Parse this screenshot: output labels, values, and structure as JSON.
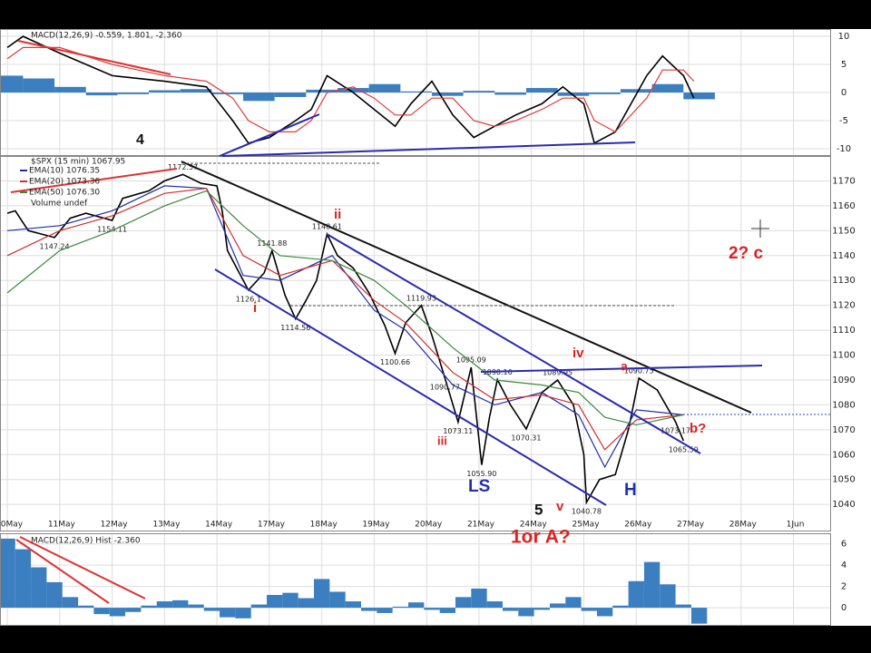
{
  "chart_data": [
    {
      "type": "line",
      "title": "$SPX (15 min) 1067.95",
      "volume_label": "Volume undef",
      "xlim": [
        -0.14,
        15.7
      ],
      "xticks": [
        {
          "value": 0,
          "label": "10May"
        },
        {
          "value": 1,
          "label": "11May"
        },
        {
          "value": 2,
          "label": "12May"
        },
        {
          "value": 3,
          "label": "13May"
        },
        {
          "value": 4,
          "label": "14May"
        },
        {
          "value": 5,
          "label": "17May"
        },
        {
          "value": 6,
          "label": "18May"
        },
        {
          "value": 7,
          "label": "19May"
        },
        {
          "value": 8,
          "label": "20May"
        },
        {
          "value": 9,
          "label": "21May"
        },
        {
          "value": 10,
          "label": "24May"
        },
        {
          "value": 11,
          "label": "25May"
        },
        {
          "value": 12,
          "label": "26May"
        },
        {
          "value": 13,
          "label": "27May"
        },
        {
          "value": 14,
          "label": "28May"
        },
        {
          "value": 15,
          "label": "1Jun"
        }
      ],
      "ylim": [
        1029.5,
        1180
      ],
      "yticks": [
        1040,
        1050,
        1060,
        1070,
        1080,
        1090,
        1100,
        1110,
        1120,
        1130,
        1140,
        1150,
        1160,
        1170
      ],
      "grid": true,
      "series": [
        {
          "name": "$SPX (15 min) 1067.95",
          "color": "#000000",
          "legend": false,
          "x": [
            0,
            0.15,
            0.4,
            0.9,
            1.2,
            1.5,
            2.0,
            2.2,
            2.7,
            3.0,
            3.35,
            3.7,
            4.0,
            4.1,
            4.2,
            4.4,
            4.6,
            4.9,
            5.05,
            5.3,
            5.5,
            5.7,
            5.9,
            6.1,
            6.3,
            6.6,
            6.9,
            7.2,
            7.4,
            7.6,
            7.9,
            8.1,
            8.35,
            8.6,
            8.85,
            9.05,
            9.2,
            9.35,
            9.6,
            9.9,
            10.2,
            10.5,
            10.8,
            11.0,
            11.05,
            11.3,
            11.6,
            11.85,
            12.05,
            12.4,
            12.75,
            12.9
          ],
          "values": [
            1157,
            1158,
            1150,
            1147.24,
            1155,
            1157,
            1154.11,
            1163,
            1166,
            1170,
            1172.57,
            1169,
            1168,
            1158,
            1142,
            1134,
            1126.1,
            1133,
            1141.88,
            1124,
            1114.56,
            1122,
            1130,
            1148.61,
            1140,
            1135,
            1125,
            1112,
            1100.66,
            1113,
            1119.93,
            1108,
            1090.77,
            1073.11,
            1095.09,
            1055.9,
            1075,
            1090.16,
            1080,
            1070.31,
            1085,
            1089.95,
            1080,
            1060,
            1040.78,
            1050,
            1052,
            1070,
            1090.75,
            1086,
            1073.17,
            1065.59
          ],
          "value_labels": [
            null,
            null,
            null,
            "1147.24",
            null,
            null,
            "1154.11",
            null,
            null,
            null,
            "1172.57",
            null,
            null,
            null,
            null,
            null,
            "1126.1",
            null,
            "1141.88",
            null,
            "1114.56",
            null,
            null,
            "1148.61",
            null,
            null,
            null,
            null,
            "1100.66",
            null,
            "1119.93",
            null,
            "1090.77",
            "1073.11",
            "1095.09",
            "1055.90",
            null,
            "1090.16",
            null,
            "1070.31",
            null,
            "1089.95",
            null,
            null,
            "1040.78",
            null,
            null,
            null,
            "1090.75",
            null,
            "1073.17",
            "1065.59"
          ]
        },
        {
          "name": "EMA(10) 1076.35",
          "color": "#1f2fa8",
          "x": [
            0,
            1,
            2,
            3,
            3.8,
            4.5,
            5.2,
            6.2,
            7.0,
            7.6,
            8.5,
            9.3,
            10.2,
            10.9,
            11.4,
            12.0,
            12.9
          ],
          "values": [
            1150,
            1152,
            1158,
            1168,
            1167,
            1132,
            1130,
            1140,
            1118,
            1110,
            1088,
            1080,
            1085,
            1076,
            1055,
            1078,
            1076
          ]
        },
        {
          "name": "EMA(20) 1073.36",
          "color": "#d03030",
          "x": [
            0,
            1,
            2,
            3,
            3.8,
            4.5,
            5.2,
            6.2,
            7.0,
            7.6,
            8.5,
            9.3,
            10.2,
            10.9,
            11.4,
            12.0,
            12.9
          ],
          "values": [
            1140,
            1150,
            1156,
            1165,
            1167,
            1140,
            1132,
            1138,
            1122,
            1113,
            1093,
            1082,
            1084,
            1080,
            1062,
            1074,
            1076
          ]
        },
        {
          "name": "EMA(50) 1076.30",
          "color": "#3a8a3a",
          "x": [
            0,
            1,
            2,
            3,
            3.8,
            4.5,
            5.2,
            6.2,
            7.0,
            7.6,
            8.5,
            9.3,
            10.2,
            10.9,
            11.4,
            12.0,
            12.9
          ],
          "values": [
            1125,
            1142,
            1150,
            1160,
            1166,
            1152,
            1140,
            1138,
            1130,
            1120,
            1103,
            1090,
            1088,
            1085,
            1075,
            1072,
            1076
          ]
        }
      ],
      "annotations": [
        "4",
        "ii",
        "i",
        "iii",
        "iv",
        "v",
        "5",
        "a",
        "b?",
        "2? c",
        "LS",
        "H",
        "1or A?"
      ]
    },
    {
      "type": "line",
      "title": "MACD(12,26,9) -0.559, 1.801, -2.360",
      "xlim": [
        -0.14,
        15.7
      ],
      "ylim": [
        -11.3,
        11.3
      ],
      "yticks": [
        -10,
        -5,
        0,
        5,
        10
      ],
      "grid": true,
      "series": [
        {
          "color": "#000000",
          "x": [
            0,
            0.3,
            1,
            2,
            3,
            3.8,
            4.3,
            4.6,
            5,
            5.5,
            5.8,
            6.1,
            6.6,
            7,
            7.4,
            7.7,
            8.1,
            8.5,
            8.9,
            9.3,
            9.7,
            10.2,
            10.6,
            11,
            11.2,
            11.6,
            12.2,
            12.5,
            12.9,
            13.1
          ],
          "values": [
            8,
            10,
            7,
            3,
            2,
            1,
            -5,
            -9,
            -8,
            -5,
            -3,
            3,
            0,
            -3,
            -6,
            -2,
            2,
            -4,
            -8,
            -6,
            -4,
            -2,
            1,
            -2,
            -9,
            -7,
            3,
            6.5,
            3,
            -1
          ]
        },
        {
          "color": "#e03a3a",
          "x": [
            0,
            0.3,
            1,
            2,
            3,
            3.8,
            4.3,
            4.6,
            5,
            5.5,
            5.8,
            6.1,
            6.6,
            7,
            7.4,
            7.7,
            8.1,
            8.5,
            8.9,
            9.3,
            9.7,
            10.2,
            10.6,
            11,
            11.2,
            11.6,
            12.2,
            12.5,
            12.9,
            13.1
          ],
          "values": [
            6,
            8,
            8,
            5,
            3,
            2,
            -1,
            -5,
            -7,
            -7,
            -5,
            0,
            1,
            -1,
            -4,
            -4,
            -1,
            -1,
            -5,
            -6,
            -5,
            -3,
            -1,
            -1,
            -5,
            -7,
            -1,
            4,
            4,
            2
          ]
        }
      ],
      "histogram": {
        "color": "#3b7fc0",
        "x": [
          0,
          0.6,
          1.2,
          1.8,
          2.4,
          3.0,
          3.6,
          4.2,
          4.8,
          5.4,
          6.0,
          6.6,
          7.2,
          7.8,
          8.4,
          9.0,
          9.6,
          10.2,
          10.8,
          11.4,
          12.0,
          12.6,
          13.2
        ],
        "values": [
          3,
          2.5,
          1,
          -0.5,
          -0.3,
          0.4,
          0.6,
          -0.3,
          -1.5,
          -0.8,
          0.5,
          0.8,
          1.5,
          0.2,
          -0.6,
          0.3,
          -0.4,
          0.8,
          -0.6,
          -0.3,
          0.6,
          1.5,
          -1.2
        ]
      }
    },
    {
      "type": "bar",
      "title": "MACD(12,26,9) Hist -2.360",
      "xlim": [
        -0.14,
        15.7
      ],
      "ylim": [
        -1.7,
        7.0
      ],
      "yticks": [
        0,
        2,
        4,
        6
      ],
      "grid": true,
      "color": "#3b7fc0",
      "x": [
        0,
        0.3,
        0.6,
        0.9,
        1.2,
        1.5,
        1.8,
        2.1,
        2.4,
        2.7,
        3.0,
        3.3,
        3.6,
        3.9,
        4.2,
        4.5,
        4.8,
        5.1,
        5.4,
        5.7,
        6.0,
        6.3,
        6.6,
        6.9,
        7.2,
        7.5,
        7.8,
        8.1,
        8.4,
        8.7,
        9.0,
        9.3,
        9.6,
        9.9,
        10.2,
        10.5,
        10.8,
        11.1,
        11.4,
        11.7,
        12.0,
        12.3,
        12.6,
        12.9,
        13.2
      ],
      "values": [
        6.5,
        5.5,
        3.8,
        2.4,
        1.0,
        0.2,
        -0.6,
        -0.8,
        -0.4,
        0.2,
        0.6,
        0.7,
        0.3,
        -0.3,
        -0.9,
        -1.0,
        0.3,
        1.2,
        1.4,
        0.9,
        2.7,
        1.5,
        0.6,
        -0.3,
        -0.5,
        0.1,
        0.5,
        -0.2,
        -0.5,
        1.0,
        1.8,
        0.6,
        -0.3,
        -0.8,
        -0.2,
        0.4,
        1.0,
        -0.3,
        -0.8,
        0.2,
        2.5,
        4.3,
        2.2,
        0.3,
        -1.5
      ]
    }
  ]
}
